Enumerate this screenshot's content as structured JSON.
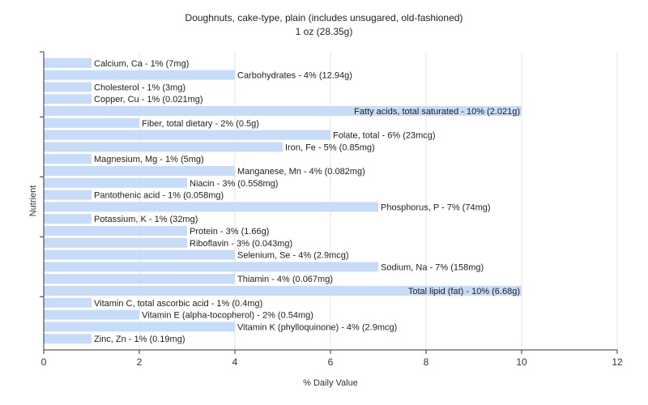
{
  "chart_data": {
    "type": "bar",
    "orientation": "horizontal",
    "title": "Doughnuts, cake-type, plain (includes unsugared, old-fashioned)",
    "subtitle": "1 oz (28.35g)",
    "xlabel": "% Daily Value",
    "ylabel": "Nutrient",
    "xlim": [
      0,
      12
    ],
    "xticks": [
      "0",
      "2",
      "4",
      "6",
      "8",
      "10",
      "12"
    ],
    "grid": true,
    "bar_color": "#c6dcf8",
    "categories": [
      "Calcium, Ca - 1% (7mg)",
      "Carbohydrates - 4% (12.94g)",
      "Cholesterol - 1% (3mg)",
      "Copper, Cu - 1% (0.021mg)",
      "Fatty acids, total saturated - 10% (2.021g)",
      "Fiber, total dietary - 2% (0.5g)",
      "Folate, total - 6% (23mcg)",
      "Iron, Fe - 5% (0.85mg)",
      "Magnesium, Mg - 1% (5mg)",
      "Manganese, Mn - 4% (0.082mg)",
      "Niacin - 3% (0.558mg)",
      "Pantothenic acid - 1% (0.058mg)",
      "Phosphorus, P - 7% (74mg)",
      "Potassium, K - 1% (32mg)",
      "Protein - 3% (1.66g)",
      "Riboflavin - 3% (0.043mg)",
      "Selenium, Se - 4% (2.9mcg)",
      "Sodium, Na - 7% (158mg)",
      "Thiamin - 4% (0.067mg)",
      "Total lipid (fat) - 10% (6.68g)",
      "Vitamin C, total ascorbic acid - 1% (0.4mg)",
      "Vitamin E (alpha-tocopherol) - 2% (0.54mg)",
      "Vitamin K (phylloquinone) - 4% (2.9mcg)",
      "Zinc, Zn - 1% (0.19mg)"
    ],
    "values": [
      1,
      4,
      1,
      1,
      10,
      2,
      6,
      5,
      1,
      4,
      3,
      1,
      7,
      1,
      3,
      3,
      4,
      7,
      4,
      10,
      1,
      2,
      4,
      1
    ]
  }
}
